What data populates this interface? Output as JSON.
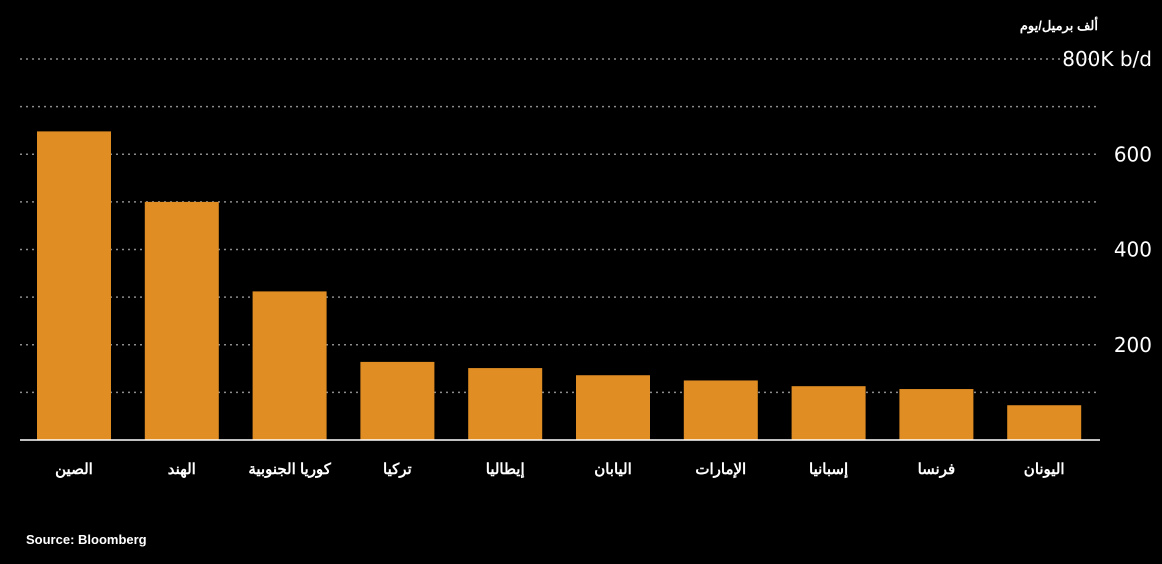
{
  "chart_data": {
    "type": "bar",
    "categories": [
      "الصين",
      "الهند",
      "كوريا الجنوبية",
      "تركيا",
      "إيطاليا",
      "اليابان",
      "الإمارات",
      "إسبانيا",
      "فرنسا",
      "اليونان"
    ],
    "values": [
      648,
      500,
      312,
      164,
      151,
      136,
      125,
      113,
      107,
      73
    ],
    "ylabel": "ألف برميل/يوم",
    "ylim": [
      0,
      800
    ],
    "yticks": [
      {
        "value": 200,
        "label": "200"
      },
      {
        "value": 400,
        "label": "400"
      },
      {
        "value": 600,
        "label": "600"
      },
      {
        "value": 800,
        "label": "800K b/d"
      }
    ],
    "grid": true,
    "legend": "none"
  },
  "source": "Source: Bloomberg",
  "colors": {
    "background": "#000000",
    "bar": "#e08d24",
    "grid": "#8c8c8c",
    "axis": "#ffffff",
    "text": "#ffffff"
  }
}
